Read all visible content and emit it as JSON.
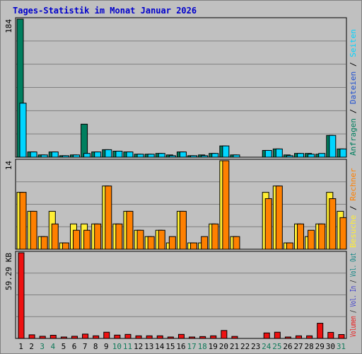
{
  "title": "Tages-Statistik im Monat Januar 2026",
  "colors": {
    "background": "#c0c0c0",
    "grid": "#808080",
    "title": "#0000cc",
    "anfragen": "#007f5f",
    "dateien": "#2050d0",
    "seiten": "#00d5ff",
    "besuche": "#ffee33",
    "rechner": "#ff8000",
    "vol_out": "#008080",
    "vol_in": "#3333cc",
    "volumen": "#ee1111",
    "weekend_label": "#107a5a"
  },
  "chart_data": [
    {
      "type": "bar",
      "panel": "top",
      "categories": [
        "1",
        "2",
        "3",
        "4",
        "5",
        "6",
        "7",
        "8",
        "9",
        "10",
        "11",
        "12",
        "13",
        "14",
        "15",
        "16",
        "17",
        "18",
        "19",
        "20",
        "21",
        "22",
        "23",
        "24",
        "25",
        "26",
        "27",
        "28",
        "29",
        "30",
        "31"
      ],
      "ymax_label": "184",
      "ylim": [
        0,
        184
      ],
      "series": [
        {
          "name": "Anfragen",
          "color": "#007f5f",
          "values": [
            184,
            7,
            3,
            7,
            2,
            3,
            44,
            7,
            10,
            8,
            7,
            4,
            4,
            5,
            3,
            7,
            2,
            3,
            5,
            15,
            3,
            0,
            0,
            9,
            11,
            3,
            5,
            5,
            4,
            29,
            11
          ]
        },
        {
          "name": "Seiten",
          "color": "#00d5ff",
          "values": [
            72,
            7,
            3,
            7,
            2,
            3,
            5,
            7,
            10,
            8,
            7,
            4,
            4,
            5,
            2,
            7,
            2,
            2,
            5,
            15,
            3,
            0,
            0,
            9,
            11,
            2,
            5,
            4,
            5,
            29,
            11
          ]
        }
      ],
      "legend_parts": [
        {
          "text": "Anfragen",
          "color": "#007f5f"
        },
        {
          "text": "Dateien",
          "color": "#2050d0"
        },
        {
          "text": "Seiten",
          "color": "#00d5ff"
        }
      ]
    },
    {
      "type": "bar",
      "panel": "middle",
      "categories": [
        "1",
        "2",
        "3",
        "4",
        "5",
        "6",
        "7",
        "8",
        "9",
        "10",
        "11",
        "12",
        "13",
        "14",
        "15",
        "16",
        "17",
        "18",
        "19",
        "20",
        "21",
        "22",
        "23",
        "24",
        "25",
        "26",
        "27",
        "28",
        "29",
        "30",
        "31"
      ],
      "ymax_label": "14",
      "ylim": [
        0,
        14
      ],
      "series": [
        {
          "name": "Besuche",
          "color": "#ffee33",
          "values": [
            9,
            6,
            2,
            6,
            1,
            4,
            4,
            4,
            10,
            4,
            6,
            3,
            2,
            3,
            1,
            6,
            1,
            1,
            4,
            14,
            2,
            0,
            0,
            9,
            10,
            1,
            4,
            2,
            4,
            9,
            6
          ]
        },
        {
          "name": "Rechner",
          "color": "#ff8000",
          "values": [
            9,
            6,
            2,
            4,
            1,
            3,
            3,
            4,
            10,
            4,
            6,
            3,
            2,
            3,
            2,
            6,
            1,
            2,
            4,
            14,
            2,
            0,
            0,
            8,
            10,
            1,
            4,
            3,
            4,
            8,
            5
          ]
        }
      ],
      "legend_parts": [
        {
          "text": "Besuche",
          "color": "#ffee33"
        },
        {
          "text": "Rechner",
          "color": "#ff8000"
        }
      ]
    },
    {
      "type": "bar",
      "panel": "bottom",
      "categories": [
        "1",
        "2",
        "3",
        "4",
        "5",
        "6",
        "7",
        "8",
        "9",
        "10",
        "11",
        "12",
        "13",
        "14",
        "15",
        "16",
        "17",
        "18",
        "19",
        "20",
        "21",
        "22",
        "23",
        "24",
        "25",
        "26",
        "27",
        "28",
        "29",
        "30",
        "31"
      ],
      "ymax_label": "59.29 KB",
      "ylim": [
        0,
        59.29
      ],
      "series": [
        {
          "name": "Volumen",
          "color": "#ee1111",
          "values": [
            59.29,
            2.5,
            1.5,
            2.2,
            0.8,
            1.5,
            3,
            1.8,
            4.3,
            2.3,
            2.8,
            1.8,
            1.8,
            1.8,
            0.7,
            2.8,
            0.7,
            1.3,
            1.8,
            5.5,
            1.4,
            0,
            0,
            3.8,
            4.3,
            0.7,
            1.8,
            1.8,
            10.5,
            4.2,
            2.7
          ]
        }
      ],
      "legend_parts": [
        {
          "text": "Volumen",
          "color": "#ee1111"
        },
        {
          "text": "Vol. In",
          "color": "#3333cc"
        },
        {
          "text": "Vol. Out",
          "color": "#008080"
        }
      ]
    }
  ],
  "x_labels": [
    {
      "text": "1",
      "weekend": false
    },
    {
      "text": "2",
      "weekend": false
    },
    {
      "text": "3",
      "weekend": true
    },
    {
      "text": "4",
      "weekend": true
    },
    {
      "text": "5",
      "weekend": false
    },
    {
      "text": "6",
      "weekend": false
    },
    {
      "text": "7",
      "weekend": false
    },
    {
      "text": "8",
      "weekend": false
    },
    {
      "text": "9",
      "weekend": false
    },
    {
      "text": "10",
      "weekend": true
    },
    {
      "text": "11",
      "weekend": true
    },
    {
      "text": "12",
      "weekend": false
    },
    {
      "text": "13",
      "weekend": false
    },
    {
      "text": "14",
      "weekend": false
    },
    {
      "text": "15",
      "weekend": false
    },
    {
      "text": "16",
      "weekend": false
    },
    {
      "text": "17",
      "weekend": true
    },
    {
      "text": "18",
      "weekend": true
    },
    {
      "text": "19",
      "weekend": false
    },
    {
      "text": "20",
      "weekend": false
    },
    {
      "text": "21",
      "weekend": false
    },
    {
      "text": "22",
      "weekend": false
    },
    {
      "text": "23",
      "weekend": false
    },
    {
      "text": "24",
      "weekend": true
    },
    {
      "text": "25",
      "weekend": true
    },
    {
      "text": "26",
      "weekend": false
    },
    {
      "text": "27",
      "weekend": false
    },
    {
      "text": "28",
      "weekend": false
    },
    {
      "text": "29",
      "weekend": false
    },
    {
      "text": "30",
      "weekend": false
    },
    {
      "text": "31",
      "weekend": true
    }
  ]
}
